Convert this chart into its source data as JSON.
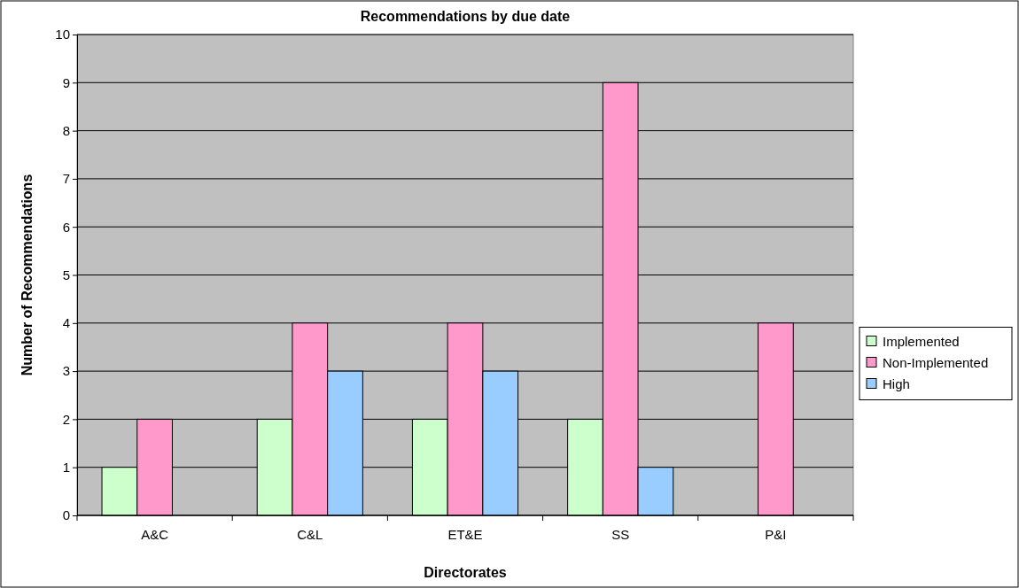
{
  "chart_data": {
    "type": "bar",
    "title": "Recommendations by due date",
    "xlabel": "Directorates",
    "ylabel": "Number of Recommendations",
    "categories": [
      "A&C",
      "C&L",
      "ET&E",
      "SS",
      "P&I"
    ],
    "series": [
      {
        "name": "Implemented",
        "color": "#ccffcc",
        "values": [
          1,
          2,
          2,
          2,
          null
        ]
      },
      {
        "name": "Non-Implemented",
        "color": "#ff99cc",
        "values": [
          2,
          4,
          4,
          9,
          4
        ]
      },
      {
        "name": "High",
        "color": "#99ccff",
        "values": [
          null,
          3,
          3,
          1,
          null
        ]
      }
    ],
    "ylim": [
      0,
      10
    ],
    "yticks": [
      0,
      1,
      2,
      3,
      4,
      5,
      6,
      7,
      8,
      9,
      10
    ],
    "grid": "y",
    "legend": "right"
  }
}
